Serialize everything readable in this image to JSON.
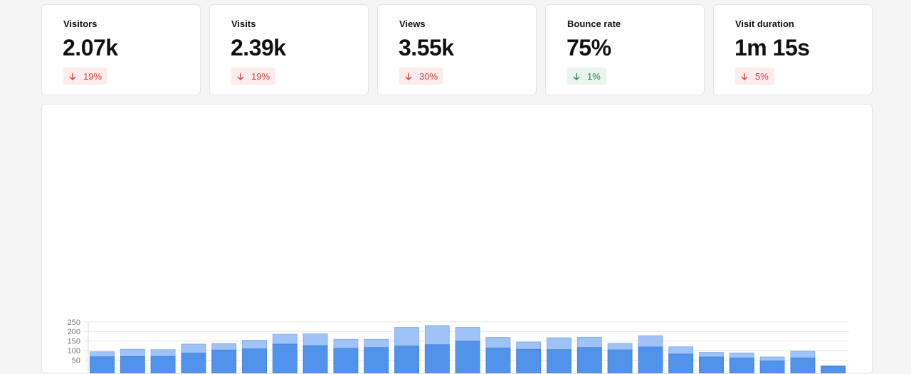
{
  "stats": [
    {
      "label": "Visitors",
      "value": "2.07k",
      "delta": "19%",
      "direction": "down"
    },
    {
      "label": "Visits",
      "value": "2.39k",
      "delta": "19%",
      "direction": "down"
    },
    {
      "label": "Views",
      "value": "3.55k",
      "delta": "30%",
      "direction": "down"
    },
    {
      "label": "Bounce rate",
      "value": "75%",
      "delta": "1%",
      "direction": "down"
    },
    {
      "label": "Visit duration",
      "value": "1m 15s",
      "delta": "5%",
      "direction": "down"
    }
  ],
  "colors": {
    "negative_delta": "#d64545",
    "positive_delta": "#2f8a4d",
    "series_dark": "#5193ea",
    "series_light": "#9fc3f6"
  },
  "chart_data": {
    "type": "bar",
    "stacked": false,
    "overlay": true,
    "yticks": [
      50,
      100,
      150,
      200,
      250
    ],
    "ylim": [
      0,
      250
    ],
    "grid": true,
    "series": [
      {
        "values": [
          94,
          107,
          105,
          134,
          137,
          154,
          186,
          188,
          159,
          159,
          221,
          231,
          221,
          169,
          145,
          167,
          170,
          138,
          178,
          120,
          91,
          88,
          67,
          97,
          21
        ]
      },
      {
        "values": [
          68,
          69,
          70,
          87,
          103,
          109,
          134,
          126,
          112,
          116,
          124,
          131,
          149,
          114,
          107,
          105,
          116,
          104,
          119,
          82,
          67,
          62,
          46,
          62,
          17
        ]
      }
    ]
  }
}
